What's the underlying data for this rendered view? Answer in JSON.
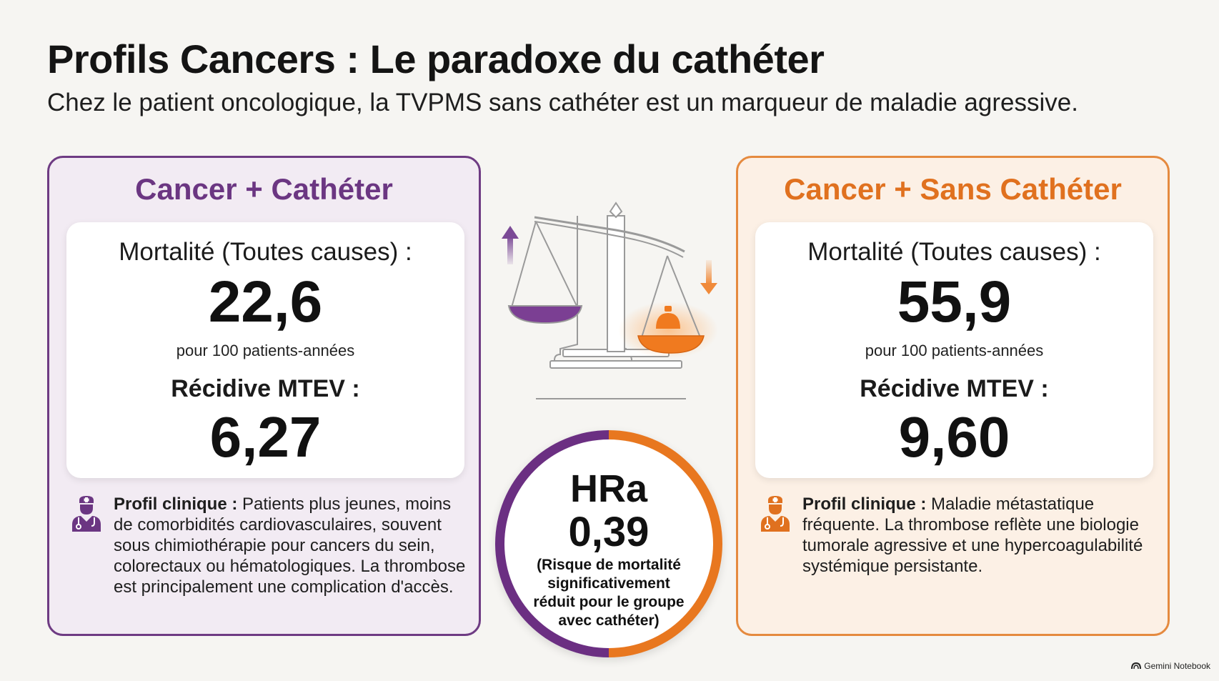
{
  "header": {
    "title": "Profils Cancers : Le paradoxe du cathéter",
    "subtitle": "Chez le patient oncologique, la TVPMS sans cathéter est un marqueur de maladie agressive."
  },
  "left_panel": {
    "title": "Cancer + Cathéter",
    "mortality_label": "Mortalité (Toutes causes) :",
    "mortality_value": "22,6",
    "mortality_unit": "pour 100 patients-années",
    "recurrence_label": "Récidive MTEV :",
    "recurrence_value": "6,27",
    "profile_label": "Profil clinique :",
    "profile_text": " Patients plus jeunes, moins de comorbidités cardiovasculaires, souvent sous chimiothérapie pour cancers du sein, colorectaux ou hématologiques. La thrombose est principalement une complication d'accès.",
    "icon": "doctor-icon",
    "accent": "#6b3682"
  },
  "right_panel": {
    "title": "Cancer + Sans Cathéter",
    "mortality_label": "Mortalité (Toutes causes) :",
    "mortality_value": "55,9",
    "mortality_unit": "pour 100 patients-années",
    "recurrence_label": "Récidive MTEV :",
    "recurrence_value": "9,60",
    "profile_label": "Profil clinique :",
    "profile_text": " Maladie métastatique fréquente. La thrombose reflète une biologie tumorale agressive et une hypercoagulabilité systémique persistante.",
    "icon": "doctor-icon",
    "accent": "#e0711f"
  },
  "center": {
    "illustration": "balance-scale-icon",
    "hr_label": "HRa",
    "hr_value": "0,39",
    "hr_note": "(Risque de mortalité significativement réduit pour le groupe avec cathéter)"
  },
  "footer": {
    "brand": "Gemini Notebook",
    "icon": "gemini-logo-icon"
  }
}
